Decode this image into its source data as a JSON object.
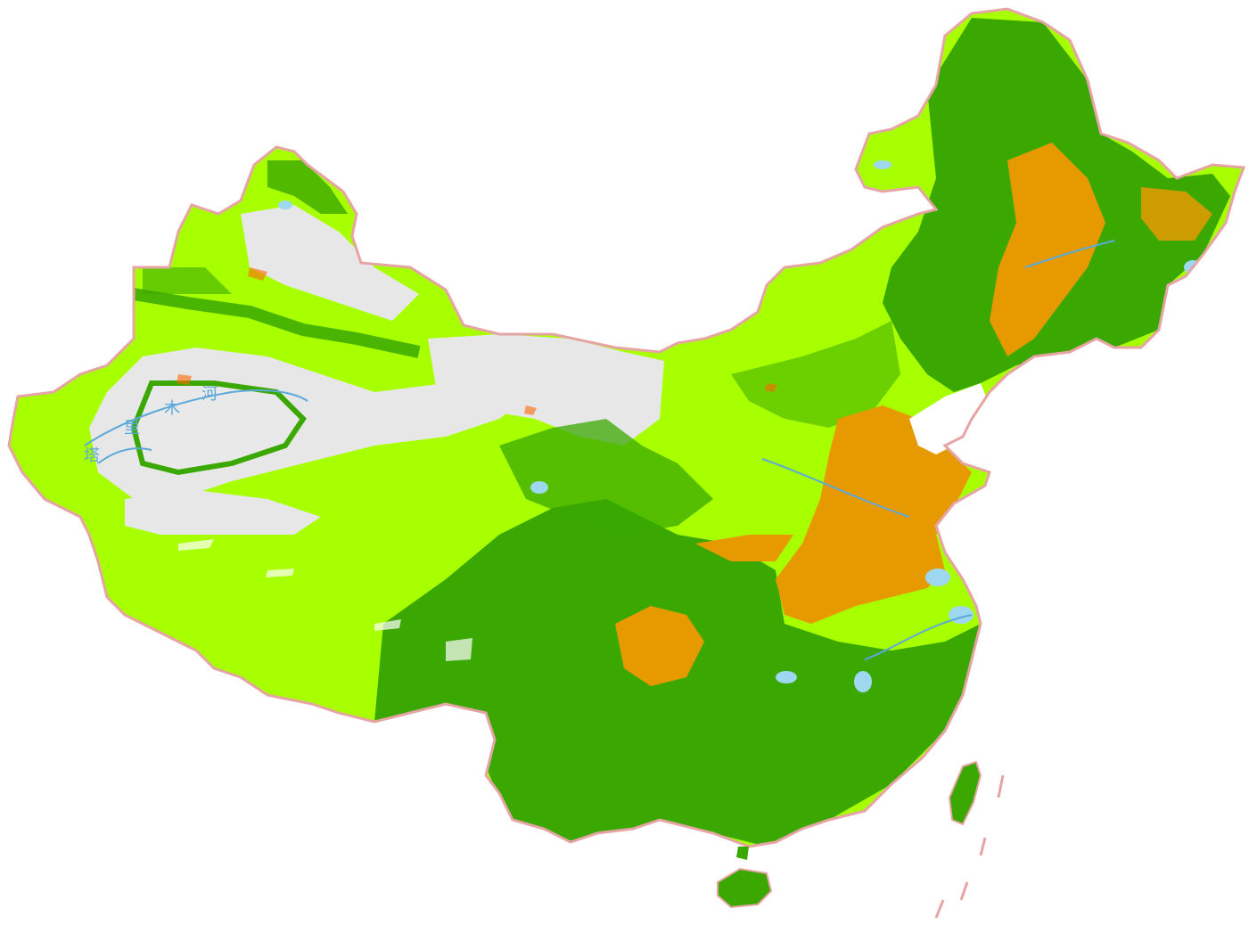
{
  "map": {
    "labels": {
      "river_char_1": "塔",
      "river_char_2": "里",
      "river_char_3": "木",
      "river_char_4": "河"
    },
    "colors": {
      "border": "#e6a4a4",
      "desert": "#e7e7e7",
      "grassland": "#a8ff00",
      "forest": "#3aa800",
      "cropland": "#e69a00",
      "urban": "#ff6600",
      "water": "#9ed8f0",
      "river": "#5aa9d8",
      "snow": "#ffffff"
    }
  }
}
